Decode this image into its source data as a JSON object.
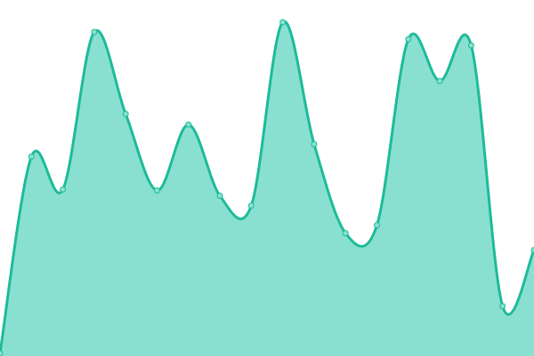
{
  "chart_data": {
    "type": "area",
    "x": [
      0,
      1,
      2,
      3,
      4,
      5,
      6,
      7,
      8,
      9,
      10,
      11,
      12,
      13,
      14,
      15,
      16,
      17
    ],
    "series": [
      {
        "values": [
          3,
          224,
          187,
          364,
          272,
          186,
          260,
          180,
          169,
          375,
          238,
          138,
          147,
          356,
          309,
          349,
          56,
          119
        ]
      }
    ],
    "ylim": [
      0,
      400
    ],
    "xlim": [
      0,
      17
    ],
    "grid": false,
    "axes_visible": false,
    "smooth": true,
    "colors": {
      "fill": "#8ae0d0",
      "stroke": "#1dbb99",
      "marker_fill": "#8ae0d0",
      "marker_stroke": "#1dbb99"
    }
  }
}
